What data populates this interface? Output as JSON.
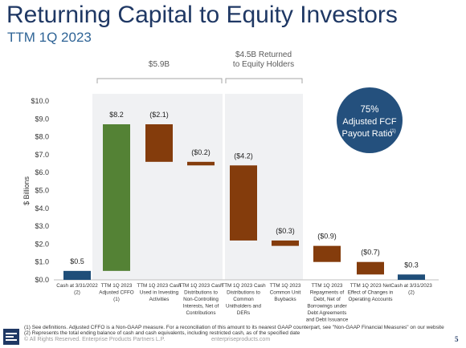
{
  "header": {
    "title": "Returning Capital to Equity Investors",
    "subtitle": "TTM 1Q 2023"
  },
  "brackets": [
    {
      "label": "$5.9B"
    },
    {
      "label_line1": "$4.5B Returned",
      "label_line2": "to Equity Holders"
    }
  ],
  "callout": {
    "line1": "75%",
    "line2": "Adjusted FCF",
    "line3": "Payout Ratio",
    "sup": "(1)",
    "color": "#24507d"
  },
  "chart_data": {
    "type": "bar",
    "subtype": "waterfall",
    "ylabel": "$ Billions",
    "ylim": [
      0,
      10
    ],
    "yticks": [
      "$0.0",
      "$1.0",
      "$2.0",
      "$3.0",
      "$4.0",
      "$5.0",
      "$6.0",
      "$7.0",
      "$8.0",
      "$9.0",
      "$10.0"
    ],
    "colors": {
      "total": "#1f4e79",
      "increase": "#548235",
      "decrease": "#843c0c"
    },
    "bars": [
      {
        "category": [
          "Cash at 3/31/2022",
          "(2)"
        ],
        "start": 0,
        "end": 0.5,
        "kind": "total",
        "label": "$0.5"
      },
      {
        "category": [
          "TTM 1Q 2023",
          "Adjusted CFFO",
          "(1)"
        ],
        "start": 0.5,
        "end": 8.7,
        "kind": "increase",
        "label": "$8.2"
      },
      {
        "category": [
          "TTM 1Q 2023 Cash",
          "Used in Investing",
          "Activities"
        ],
        "start": 8.7,
        "end": 6.6,
        "kind": "decrease",
        "label": "($2.1)"
      },
      {
        "category": [
          "TTM 1Q 2023 Cash",
          "Distributions to",
          "Non-Controlling",
          "Interests, Net of",
          "Contributions"
        ],
        "start": 6.6,
        "end": 6.4,
        "kind": "decrease",
        "label": "($0.2)"
      },
      {
        "category": [
          "TTM 1Q 2023 Cash",
          "Distributions to",
          "Common",
          "Unitholders and",
          "DERs"
        ],
        "start": 6.4,
        "end": 2.2,
        "kind": "decrease",
        "label": "($4.2)"
      },
      {
        "category": [
          "TTM 1Q 2023",
          "Common Unit",
          "Buybacks"
        ],
        "start": 2.2,
        "end": 1.9,
        "kind": "decrease",
        "label": "($0.3)"
      },
      {
        "category": [
          "TTM 1Q 2023",
          "Repayments of",
          "Debt, Net of",
          "Borrowings under",
          "Debt Agreements",
          "and Debt Issuance"
        ],
        "start": 1.9,
        "end": 1.0,
        "kind": "decrease",
        "label": "($0.9)"
      },
      {
        "category": [
          "TTM 1Q 2023 Net",
          "Effect of Changes in",
          "Operating Accounts"
        ],
        "start": 1.0,
        "end": 0.3,
        "kind": "decrease",
        "label": "($0.7)"
      },
      {
        "category": [
          "Cash at 3/31/2023",
          "(2)"
        ],
        "start": 0,
        "end": 0.3,
        "kind": "total",
        "label": "$0.3"
      }
    ]
  },
  "footnotes": [
    "(1)  See definitions. Adjusted CFFO is a Non-GAAP measure. For a reconciliation of this amount to its nearest GAAP counterpart, see \"Non-GAAP Financial Measures\" on our website",
    "(2)  Represents the total ending balance of cash and cash equivalents, including restricted cash, as of the specified date"
  ],
  "footer": {
    "copyright": "© All Rights Reserved. Enterprise Products Partners L.P.",
    "website": "enterpriseproducts.com",
    "page": "5"
  }
}
